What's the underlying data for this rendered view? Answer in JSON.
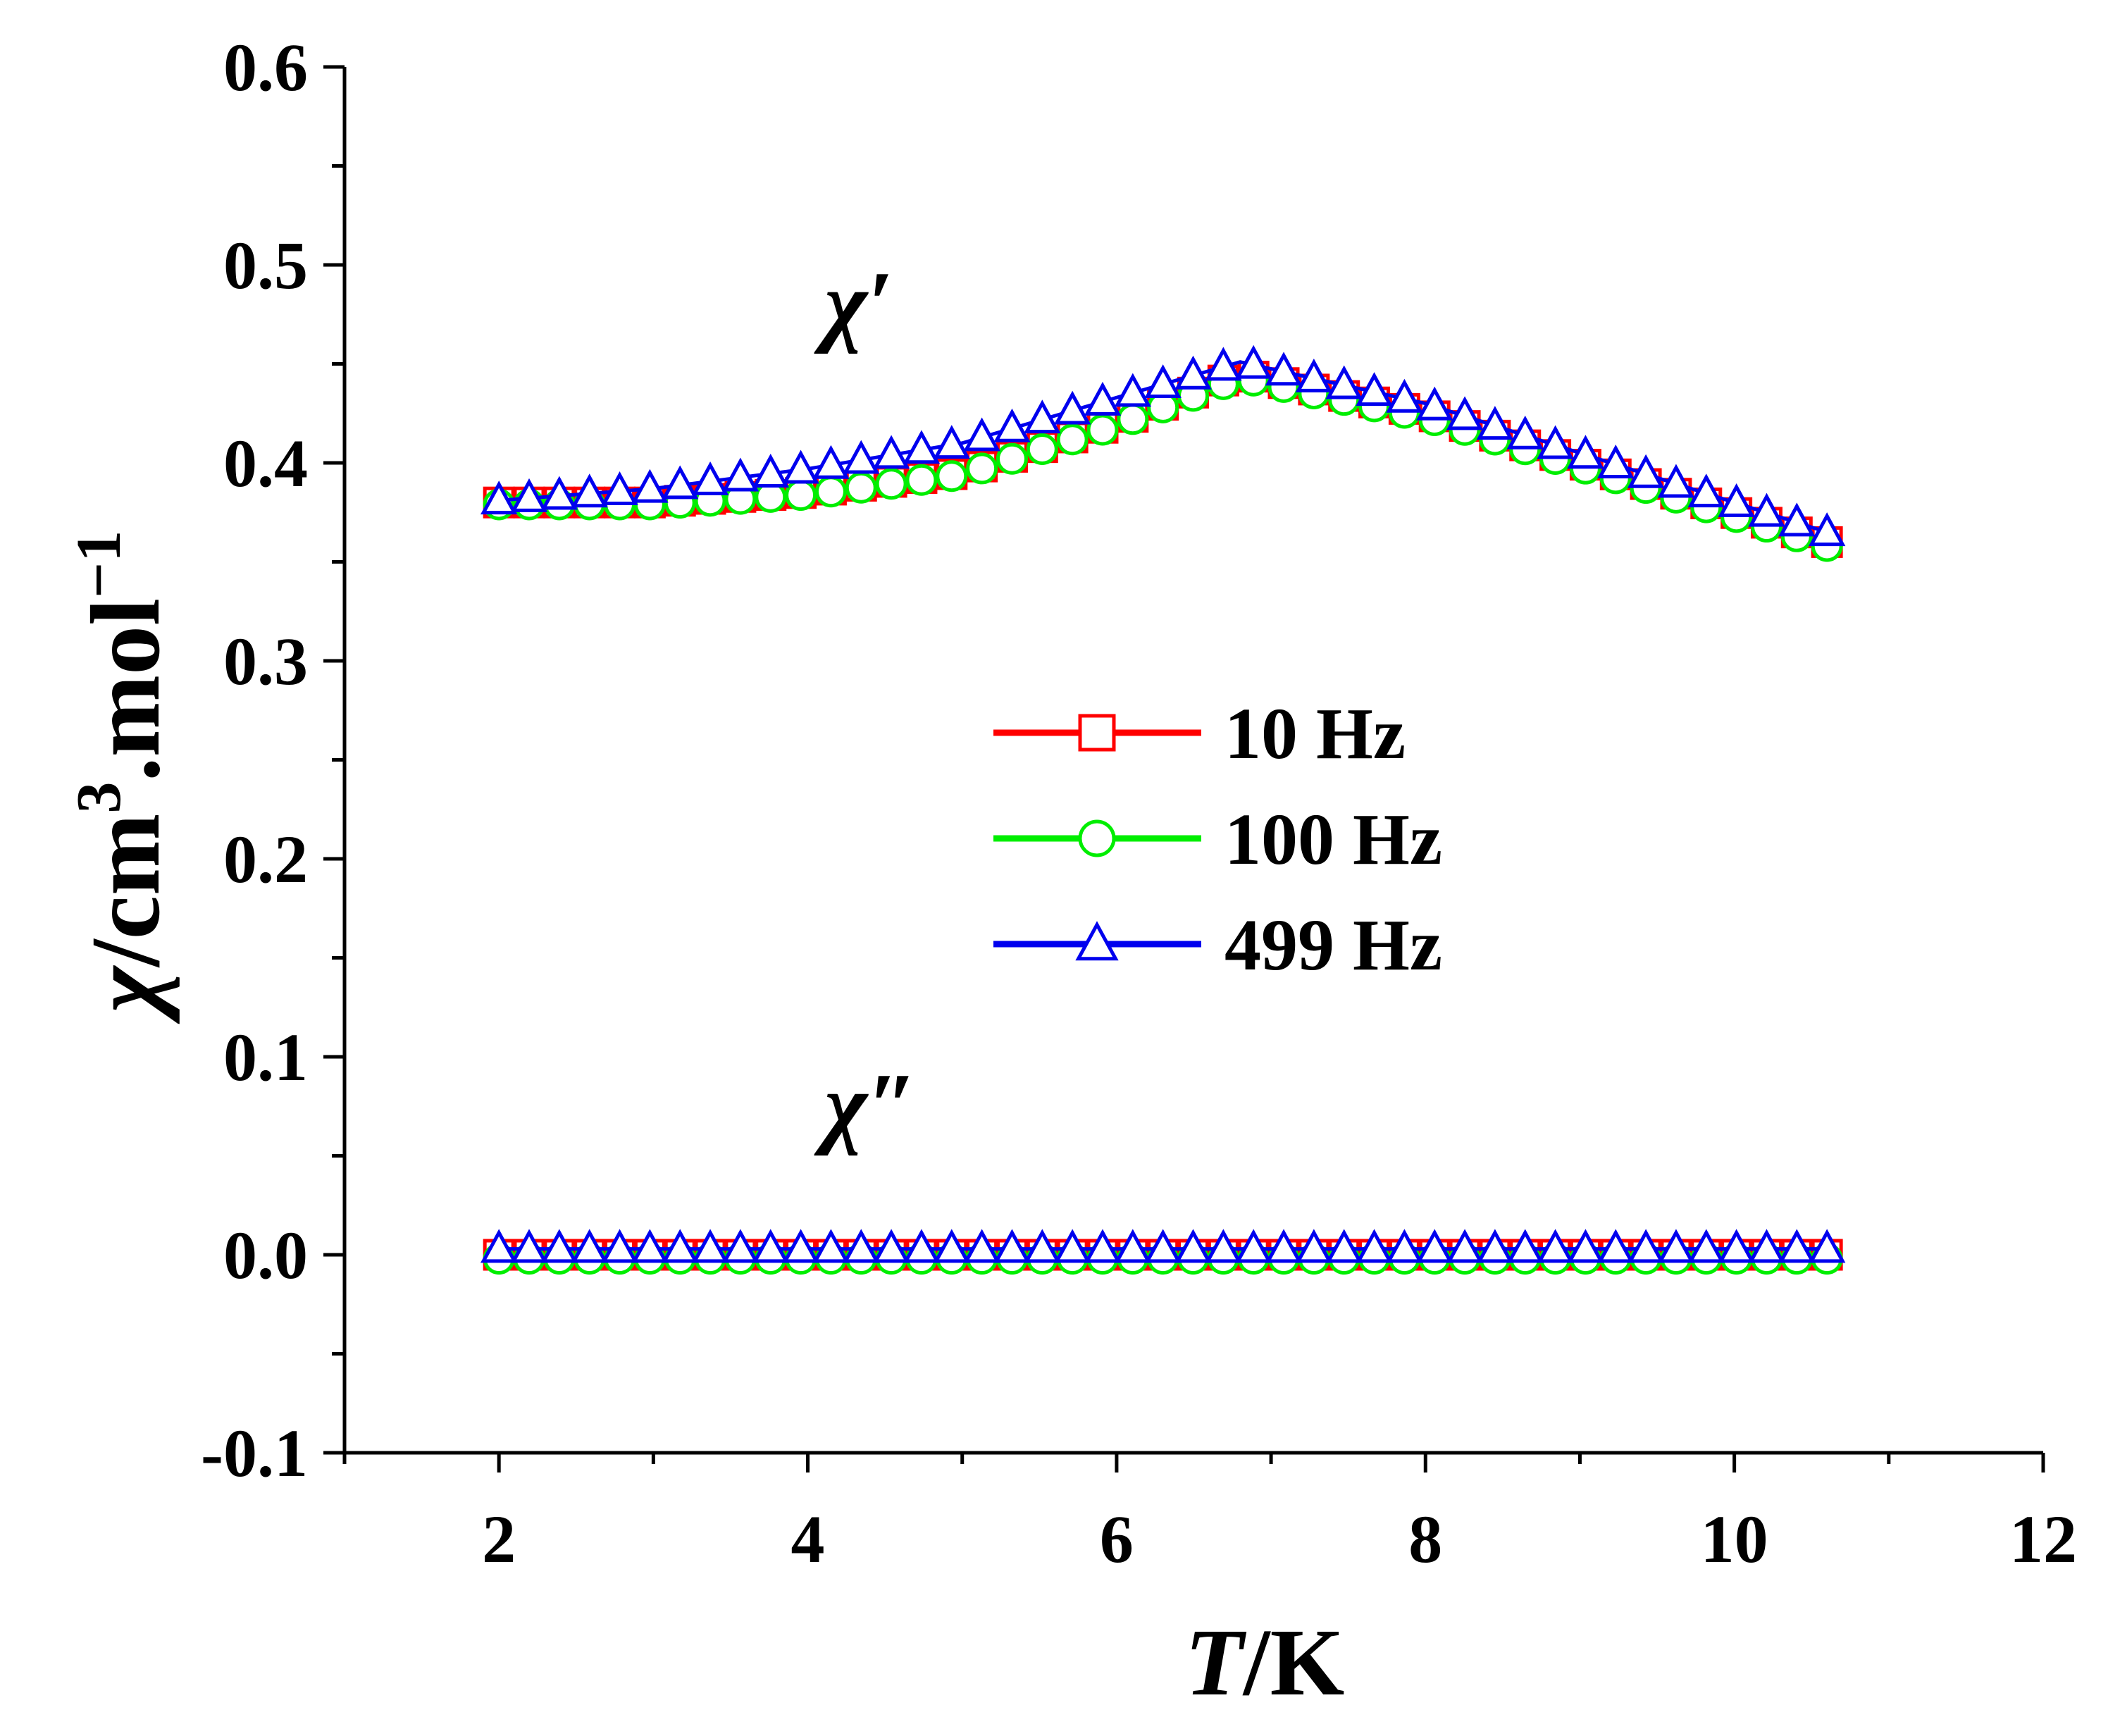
{
  "chart_data": {
    "type": "line",
    "xlabel": {
      "italic": "T",
      "rest": "/K"
    },
    "ylabel": {
      "chi": "χ",
      "unit": "/cm",
      "sup1": "3",
      "mid": ".mol",
      "sup2": "−1"
    },
    "xlim": [
      1,
      12
    ],
    "ylim": [
      -0.1,
      0.6
    ],
    "xticks": [
      2,
      4,
      6,
      8,
      10,
      12
    ],
    "xtick_labels": [
      "2",
      "4",
      "6",
      "8",
      "10",
      "12"
    ],
    "yticks": [
      -0.1,
      0.0,
      0.1,
      0.2,
      0.3,
      0.4,
      0.5,
      0.6
    ],
    "ytick_labels": [
      "-0.1",
      "0.0",
      "0.1",
      "0.2",
      "0.3",
      "0.4",
      "0.5",
      "0.6"
    ],
    "annotations": [
      {
        "key": "chi_prime",
        "text": "χ′",
        "x": 4.2,
        "y": 0.465
      },
      {
        "key": "chi_dprime",
        "text": "χ″",
        "x": 4.2,
        "y": 0.06
      }
    ],
    "legend_position": "center",
    "series": [
      {
        "name": "10 Hz",
        "color": "#ff0000",
        "marker": "square",
        "chi_prime": {
          "x": [
            2.0,
            3.0,
            4.0,
            5.0,
            6.0,
            6.8,
            8.0,
            9.0,
            10.6
          ],
          "y": [
            0.38,
            0.38,
            0.385,
            0.395,
            0.42,
            0.445,
            0.425,
            0.4,
            0.36
          ]
        },
        "chi_dprime": {
          "x": [
            2.0,
            10.6
          ],
          "y": [
            0.0,
            0.0
          ]
        }
      },
      {
        "name": "100 Hz",
        "color": "#00ee00",
        "marker": "circle",
        "chi_prime": {
          "x": [
            2.0,
            3.0,
            4.0,
            5.0,
            6.0,
            6.8,
            8.0,
            9.0,
            10.6
          ],
          "y": [
            0.379,
            0.379,
            0.384,
            0.394,
            0.419,
            0.443,
            0.423,
            0.398,
            0.358
          ]
        },
        "chi_dprime": {
          "x": [
            2.0,
            10.6
          ],
          "y": [
            -0.002,
            -0.002
          ]
        }
      },
      {
        "name": "499 Hz",
        "color": "#0000ee",
        "marker": "triangle",
        "chi_prime": {
          "x": [
            2.0,
            3.0,
            4.0,
            5.0,
            6.0,
            6.8,
            8.0,
            9.0,
            10.6
          ],
          "y": [
            0.381,
            0.387,
            0.397,
            0.41,
            0.433,
            0.451,
            0.43,
            0.405,
            0.365
          ]
        },
        "chi_dprime": {
          "x": [
            2.0,
            10.6
          ],
          "y": [
            0.003,
            0.003
          ]
        }
      }
    ]
  }
}
